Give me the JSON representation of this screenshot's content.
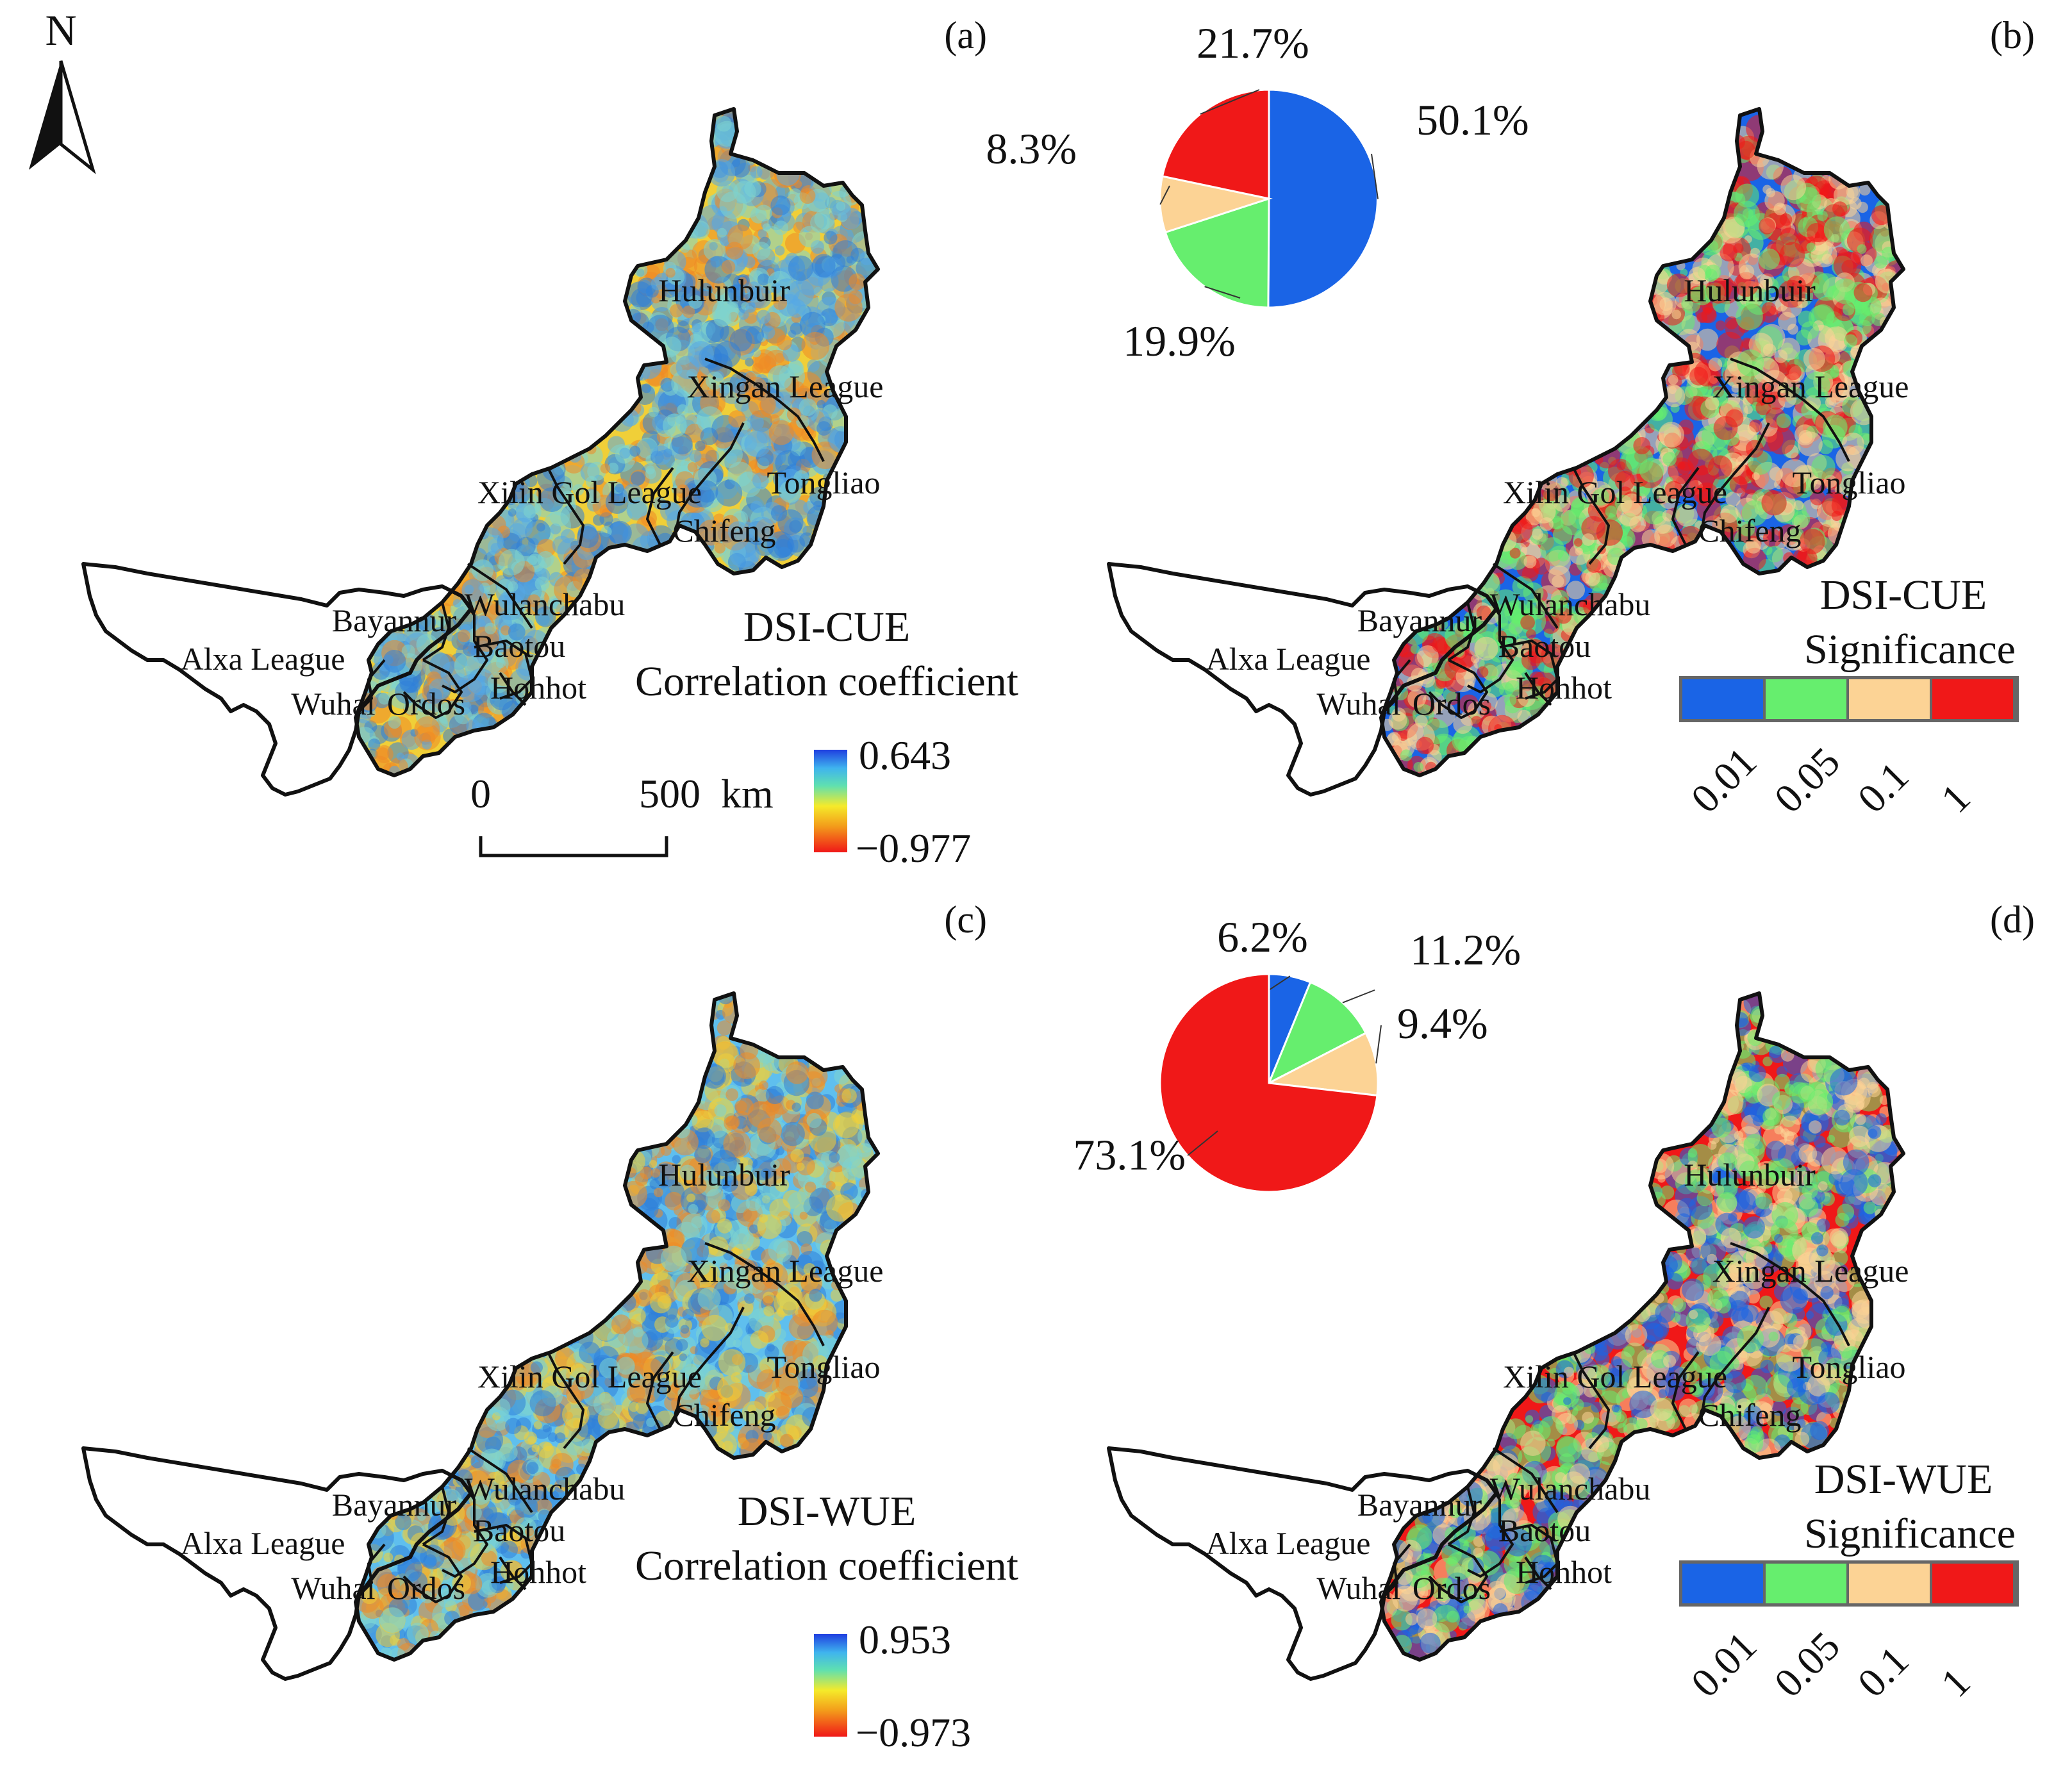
{
  "north": {
    "label": "N"
  },
  "panels": [
    {
      "id": "a",
      "letter": "(a)",
      "kind": "correlation",
      "legend_title": [
        "DSI-CUE",
        "Correlation coefficient"
      ],
      "colorbar": {
        "max": "0.643",
        "min": "−0.977"
      },
      "scalebar": {
        "start": "0",
        "end": "500",
        "unit": "km"
      },
      "colors": {
        "west_fill": "#ffffff",
        "east_fill": "#f0cf38",
        "speckle": [
          "#56a8e6",
          "#7dd3cf",
          "#ee8a26",
          "#2f7fd8"
        ]
      }
    },
    {
      "id": "b",
      "letter": "(b)",
      "kind": "significance",
      "legend_title": [
        "DSI-CUE",
        "Significance"
      ],
      "pie": [
        {
          "label": "50.1%",
          "value": 50.1,
          "color": "#1a64e6"
        },
        {
          "label": "19.9%",
          "value": 19.9,
          "color": "#66ee6e"
        },
        {
          "label": "8.3%",
          "value": 8.3,
          "color": "#fcd395"
        },
        {
          "label": "21.7%",
          "value": 21.7,
          "color": "#f01818"
        }
      ],
      "legend_ticks": [
        "0.01",
        "0.05",
        "0.1",
        "1"
      ],
      "colors": {
        "west_fill": "#ffffff",
        "east_fill": "#1a64e6",
        "speckle": [
          "#f01818",
          "#fcd395",
          "#66ee6e"
        ]
      }
    },
    {
      "id": "c",
      "letter": "(c)",
      "kind": "correlation",
      "legend_title": [
        "DSI-WUE",
        "Correlation coefficient"
      ],
      "colorbar": {
        "max": "0.953",
        "min": "−0.973"
      },
      "colors": {
        "west_fill": "#ffffff",
        "east_fill": "#5fbfee",
        "speckle": [
          "#f0cf38",
          "#2f7fd8",
          "#7dd3cf",
          "#ee8a26"
        ]
      }
    },
    {
      "id": "d",
      "letter": "(d)",
      "kind": "significance",
      "legend_title": [
        "DSI-WUE",
        "Significance"
      ],
      "pie": [
        {
          "label": "6.2%",
          "value": 6.2,
          "color": "#1a64e6"
        },
        {
          "label": "11.2%",
          "value": 11.2,
          "color": "#66ee6e"
        },
        {
          "label": "9.4%",
          "value": 9.4,
          "color": "#fcd395"
        },
        {
          "label": "73.1%",
          "value": 73.1,
          "color": "#f01818"
        }
      ],
      "legend_ticks": [
        "0.01",
        "0.05",
        "0.1",
        "1"
      ],
      "colors": {
        "west_fill": "#ffffff",
        "east_fill": "#f01818",
        "speckle": [
          "#fcd395",
          "#1a64e6",
          "#66ee6e"
        ]
      }
    }
  ],
  "regions": [
    "Hulunbuir",
    "Xingan League",
    "Xilin Gol League",
    "Tongliao",
    "Chifeng",
    "Bayannur",
    "Wulanchabu",
    "Baotou",
    "Alxa League",
    "Wuhai",
    "Ordos",
    "Hohhot"
  ],
  "significance_colors": [
    "#1a64e6",
    "#66ee6e",
    "#fcd395",
    "#f01818"
  ],
  "outline_color": "#111111"
}
